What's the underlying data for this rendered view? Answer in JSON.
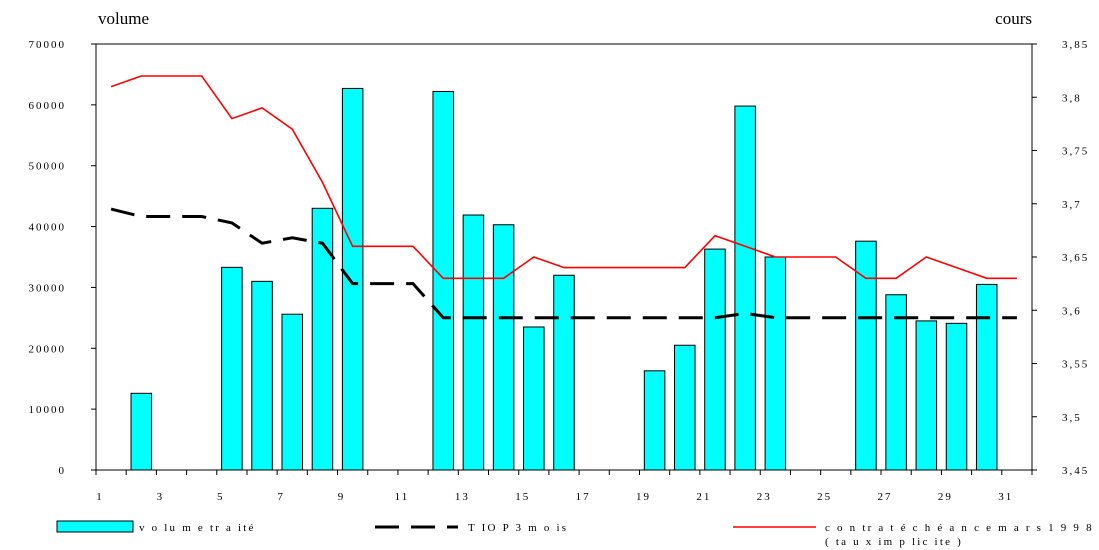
{
  "chart_data": {
    "type": "bar",
    "x": [
      1,
      2,
      3,
      4,
      5,
      6,
      7,
      8,
      9,
      10,
      11,
      12,
      13,
      14,
      15,
      16,
      17,
      18,
      19,
      20,
      21,
      22,
      23,
      24,
      25,
      26,
      27,
      28,
      29,
      30,
      31
    ],
    "x_tick_labels": [
      "1",
      "3",
      "5",
      "7",
      "9",
      "11",
      "13",
      "15",
      "17",
      "19",
      "21",
      "23",
      "25",
      "27",
      "29",
      "31"
    ],
    "ylabel_left": "volume",
    "ylabel_right": "cours",
    "ylim_left": [
      0,
      70000
    ],
    "ylim_right": [
      3.45,
      3.85
    ],
    "y_left_ticks": [
      "0",
      "10000",
      "20000",
      "30000",
      "40000",
      "50000",
      "60000",
      "70000"
    ],
    "y_right_ticks": [
      "3,45",
      "3,5",
      "3,55",
      "3,6",
      "3,65",
      "3,7",
      "3,75",
      "3,8",
      "3,85"
    ],
    "grid": false,
    "legend_position": "bottom",
    "series": [
      {
        "name": "v o lu m e  tr a ité",
        "type": "bar",
        "axis": "left",
        "color": "#00ffff",
        "values": [
          null,
          12600,
          null,
          null,
          33300,
          31000,
          25600,
          43000,
          62700,
          null,
          null,
          62200,
          41900,
          40300,
          23500,
          32000,
          null,
          null,
          16300,
          20500,
          36300,
          59800,
          35000,
          null,
          null,
          37600,
          28800,
          24500,
          24100,
          30500,
          null
        ]
      },
      {
        "name": "T IO P  3  m o is",
        "type": "line",
        "style": "dashed",
        "axis": "right",
        "color": "#000000",
        "values": [
          3.695,
          3.688,
          3.688,
          3.688,
          3.682,
          3.663,
          3.668,
          3.663,
          3.625,
          3.625,
          3.625,
          3.593,
          3.593,
          3.593,
          3.593,
          3.593,
          3.593,
          3.593,
          3.593,
          3.593,
          3.593,
          3.597,
          3.593,
          3.593,
          3.593,
          3.593,
          3.593,
          3.593,
          3.593,
          3.593,
          3.593
        ]
      },
      {
        "name": "c o n tr a t é c h é a n c e  m a r s  1 9 9 8",
        "name_line2": "( ta u x  im p lic ite )",
        "type": "line",
        "axis": "right",
        "color": "#ff0000",
        "values": [
          3.81,
          3.82,
          3.82,
          3.82,
          3.78,
          3.79,
          3.77,
          3.72,
          3.66,
          3.66,
          3.66,
          3.63,
          3.63,
          3.63,
          3.65,
          3.64,
          3.64,
          3.64,
          3.64,
          3.64,
          3.67,
          3.66,
          3.65,
          3.65,
          3.65,
          3.63,
          3.63,
          3.65,
          3.64,
          3.63,
          3.63
        ]
      }
    ]
  }
}
